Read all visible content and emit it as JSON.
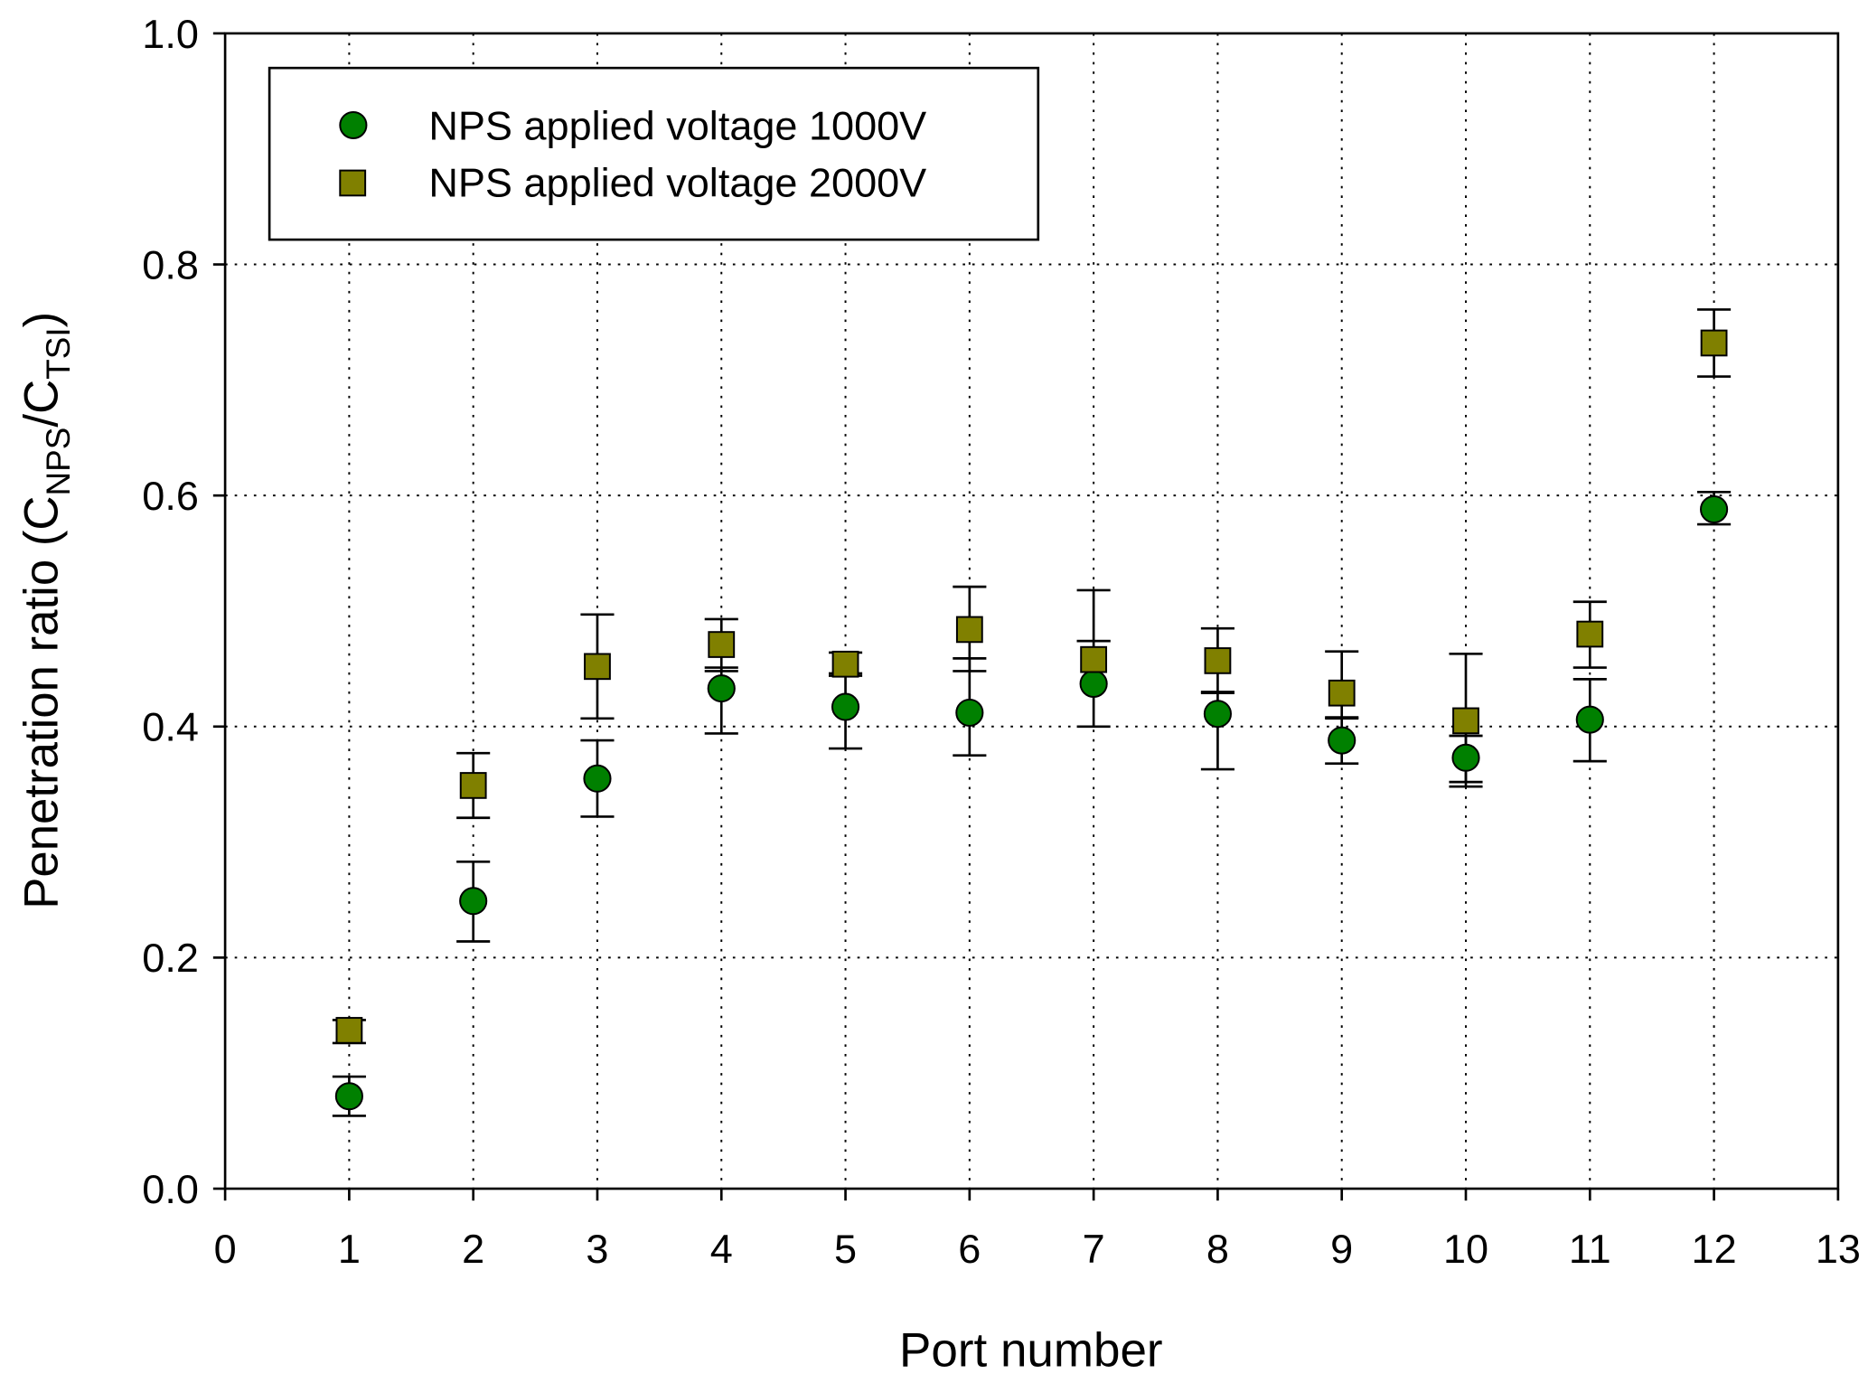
{
  "chart_data": {
    "type": "scatter",
    "title": "",
    "xlabel": "Port number",
    "ylabel": {
      "main": "Penetration ratio (C",
      "sub1": "NPS",
      "mid": "/C",
      "sub2": "TSI",
      "end": ")"
    },
    "xlim": [
      0,
      13
    ],
    "ylim": [
      0,
      1.0
    ],
    "xticks": [
      "0",
      "1",
      "2",
      "3",
      "4",
      "5",
      "6",
      "7",
      "8",
      "9",
      "10",
      "11",
      "12",
      "13"
    ],
    "yticks": [
      "0.0",
      "0.2",
      "0.4",
      "0.6",
      "0.8",
      "1.0"
    ],
    "grid": true,
    "legend_position": "top-left",
    "series": [
      {
        "name": "NPS applied voltage 1000V",
        "marker": "circle",
        "color": "#008000",
        "x": [
          1,
          2,
          3,
          4,
          5,
          6,
          7,
          8,
          9,
          10,
          11,
          12
        ],
        "y": [
          0.08,
          0.249,
          0.355,
          0.433,
          0.417,
          0.412,
          0.437,
          0.411,
          0.388,
          0.373,
          0.406,
          0.588
        ],
        "err_low": [
          0.063,
          0.214,
          0.322,
          0.394,
          0.381,
          0.375,
          0.4,
          0.363,
          0.368,
          0.352,
          0.37,
          0.575
        ],
        "err_high": [
          0.097,
          0.283,
          0.388,
          0.451,
          0.446,
          0.459,
          0.474,
          0.429,
          0.407,
          0.392,
          0.441,
          0.603
        ]
      },
      {
        "name": "NPS applied voltage 2000V",
        "marker": "square",
        "color": "#808000",
        "x": [
          1,
          2,
          3,
          4,
          5,
          6,
          7,
          8,
          9,
          10,
          11,
          12
        ],
        "y": [
          0.137,
          0.349,
          0.452,
          0.471,
          0.454,
          0.484,
          0.458,
          0.457,
          0.429,
          0.405,
          0.48,
          0.732
        ],
        "err_low": [
          0.126,
          0.321,
          0.407,
          0.448,
          0.444,
          0.448,
          0.474,
          0.43,
          0.408,
          0.348,
          0.451,
          0.703
        ],
        "err_high": [
          0.146,
          0.377,
          0.497,
          0.493,
          0.464,
          0.521,
          0.518,
          0.485,
          0.465,
          0.463,
          0.508,
          0.761
        ]
      }
    ]
  }
}
